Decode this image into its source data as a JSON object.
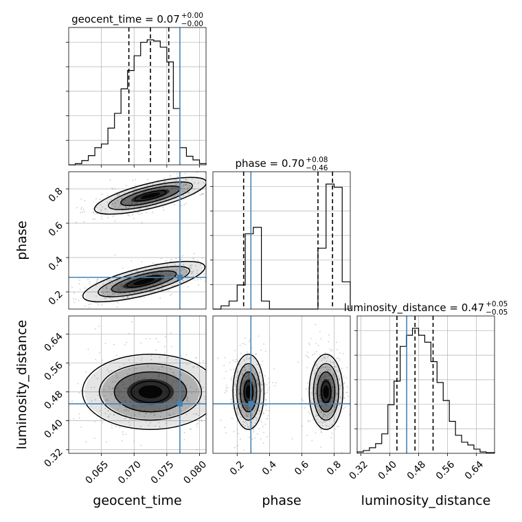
{
  "chart_data": [
    {
      "type": "histogram",
      "panel": "geocent_time-marginal",
      "title_param": "geocent_time",
      "title_value": "0.07",
      "title_plus": "+0.00",
      "title_minus": "−0.00",
      "xlim": [
        0.06,
        0.081
      ],
      "x_ticks": [
        0.065,
        0.07,
        0.075,
        0.08
      ],
      "bin_edges": [
        0.06,
        0.061,
        0.062,
        0.063,
        0.064,
        0.065,
        0.066,
        0.067,
        0.068,
        0.069,
        0.07,
        0.071,
        0.072,
        0.073,
        0.074,
        0.075,
        0.076,
        0.077,
        0.078,
        0.079,
        0.08,
        0.081
      ],
      "counts": [
        0.0,
        1.0,
        3.5,
        7.5,
        14,
        17,
        30,
        42,
        62,
        77,
        89,
        100,
        102,
        101,
        96,
        84,
        46,
        14,
        7,
        4,
        1
      ],
      "quantiles": [
        0.0692,
        0.0725,
        0.0753
      ],
      "truth": 0.077
    },
    {
      "type": "contour",
      "panel": "phase-vs-geocent_time",
      "xlabel": "",
      "ylabel": "phase",
      "xlim": [
        0.06,
        0.081
      ],
      "ylim": [
        0.1,
        0.9
      ],
      "y_ticks": [
        0.2,
        0.4,
        0.6,
        0.8
      ],
      "y_tick_labels": [
        "0.2",
        "0.4",
        "0.6",
        "0.8"
      ],
      "blobs": [
        {
          "cx": 0.0725,
          "cy": 0.76,
          "rx": 0.0055,
          "ry": 0.045,
          "tilt_deg": -14
        },
        {
          "cx": 0.0715,
          "cy": 0.26,
          "rx": 0.006,
          "ry": 0.05,
          "tilt_deg": -14
        }
      ],
      "truth": [
        0.077,
        0.285
      ]
    },
    {
      "type": "histogram",
      "panel": "phase-marginal",
      "title_param": "phase",
      "title_value": "0.70",
      "title_plus": "+0.08",
      "title_minus": "−0.46",
      "xlim": [
        0.05,
        0.9
      ],
      "bin_edges": [
        0.05,
        0.1,
        0.15,
        0.2,
        0.25,
        0.3,
        0.35,
        0.4,
        0.45,
        0.5,
        0.55,
        0.6,
        0.65,
        0.7,
        0.75,
        0.8,
        0.85,
        0.9
      ],
      "counts": [
        0,
        2,
        5,
        15,
        47,
        51,
        5,
        0,
        0,
        0,
        0,
        0,
        0,
        38,
        78,
        76,
        17
      ],
      "quantiles": [
        0.24,
        0.7,
        0.79
      ],
      "truth": 0.285
    },
    {
      "type": "contour",
      "panel": "luminosity_distance-vs-geocent_time",
      "xlabel": "geocent_time",
      "ylabel": "luminosity_distance",
      "xlim": [
        0.06,
        0.081
      ],
      "ylim": [
        0.31,
        0.69
      ],
      "x_ticks": [
        0.065,
        0.07,
        0.075,
        0.08
      ],
      "x_tick_labels": [
        "0.065",
        "0.070",
        "0.075",
        "0.080"
      ],
      "y_ticks": [
        0.32,
        0.4,
        0.48,
        0.56,
        0.64
      ],
      "y_tick_labels": [
        "0.32",
        "0.40",
        "0.48",
        "0.56",
        "0.64"
      ],
      "blobs": [
        {
          "cx": 0.0725,
          "cy": 0.48,
          "rx": 0.0065,
          "ry": 0.065,
          "tilt_deg": 0
        }
      ],
      "truth": [
        0.077,
        0.447
      ]
    },
    {
      "type": "contour",
      "panel": "luminosity_distance-vs-phase",
      "xlabel": "phase",
      "ylabel": "",
      "xlim": [
        0.05,
        0.9
      ],
      "ylim": [
        0.31,
        0.69
      ],
      "x_ticks": [
        0.2,
        0.4,
        0.6,
        0.8
      ],
      "x_tick_labels": [
        "0.2",
        "0.4",
        "0.6",
        "0.8"
      ],
      "blobs": [
        {
          "cx": 0.27,
          "cy": 0.48,
          "rx": 0.06,
          "ry": 0.065,
          "tilt_deg": 0
        },
        {
          "cx": 0.75,
          "cy": 0.48,
          "rx": 0.065,
          "ry": 0.065,
          "tilt_deg": 0
        }
      ],
      "truth": [
        0.285,
        0.447
      ]
    },
    {
      "type": "histogram",
      "panel": "luminosity_distance-marginal",
      "title_param": "luminosity_distance",
      "title_value": "0.47",
      "title_plus": "+0.05",
      "title_minus": "−0.05",
      "xlabel": "luminosity_distance",
      "xlim": [
        0.31,
        0.69
      ],
      "x_ticks": [
        0.32,
        0.4,
        0.48,
        0.56,
        0.64
      ],
      "x_tick_labels": [
        "0.32",
        "0.40",
        "0.48",
        "0.56",
        "0.64"
      ],
      "bin_edges": [
        0.31,
        0.327,
        0.344,
        0.361,
        0.378,
        0.395,
        0.412,
        0.429,
        0.446,
        0.463,
        0.48,
        0.497,
        0.514,
        0.531,
        0.548,
        0.565,
        0.582,
        0.599,
        0.616,
        0.633,
        0.65,
        0.667,
        0.69
      ],
      "counts": [
        1,
        2,
        4,
        7,
        14,
        35,
        52,
        77,
        85,
        90,
        85,
        80,
        66,
        51,
        38,
        23,
        13,
        8,
        6,
        3,
        1,
        0.5
      ],
      "quantiles": [
        0.42,
        0.47,
        0.52
      ],
      "truth": 0.447
    }
  ],
  "colors": {
    "hist_line": "#000000",
    "quantile_line": "#000000",
    "truth_line": "#4682b4",
    "grid": "#b0b0b0",
    "density": "#000000",
    "scatter": "#8c8c8c"
  }
}
